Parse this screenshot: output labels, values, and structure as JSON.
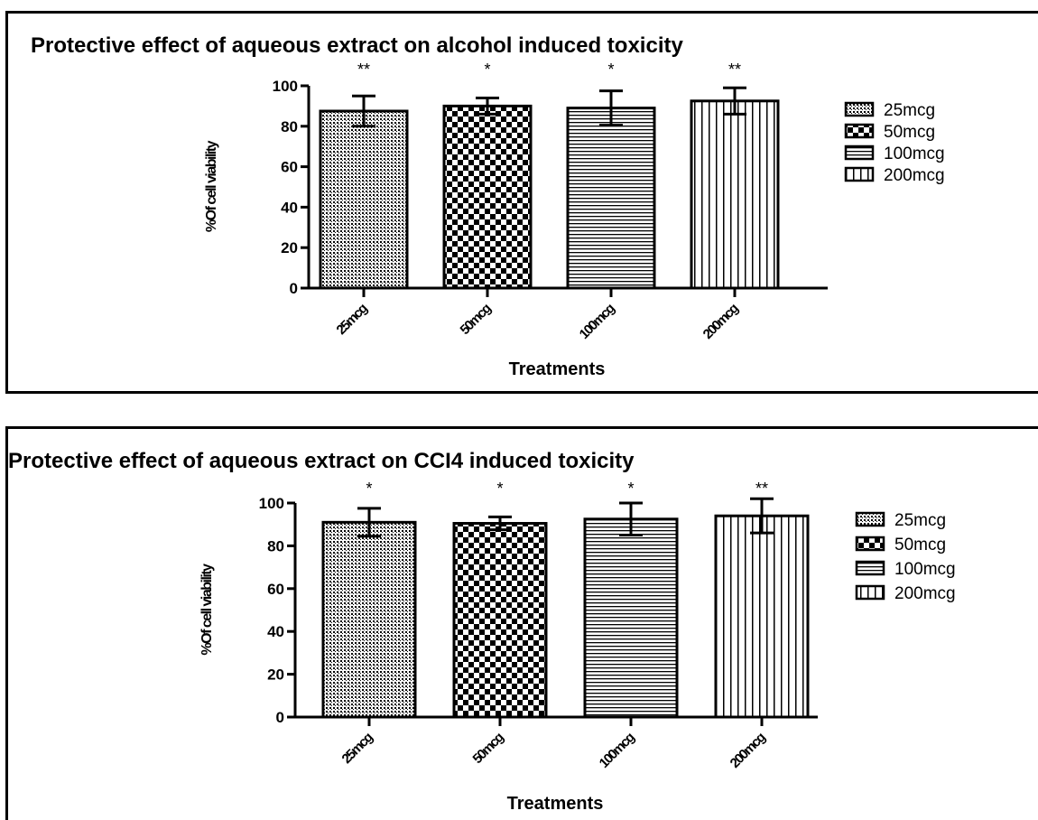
{
  "chart_data": [
    {
      "type": "bar",
      "title": "Protective effect of aqueous extract on alcohol  induced toxicity",
      "xlabel": "Treatments",
      "ylabel": "%Of cell viability",
      "ylim": [
        0,
        100
      ],
      "yticks": [
        "0",
        "20",
        "40",
        "60",
        "80",
        "100"
      ],
      "categories": [
        "25mcg",
        "50mcg",
        "100mcg",
        "200mcg"
      ],
      "values": [
        87.5,
        90,
        89,
        92.5
      ],
      "errors": [
        7.5,
        4,
        8.5,
        6.5
      ],
      "significance": [
        "**",
        "*",
        "*",
        "**"
      ],
      "legend": [
        "25mcg",
        "50mcg",
        "100mcg",
        "200mcg"
      ],
      "legend_position": "right",
      "grid": false
    },
    {
      "type": "bar",
      "title": "Protective effect of aqueous extract on CCI4  induced toxicity",
      "xlabel": "Treatments",
      "ylabel": "%Of cell viability",
      "ylim": [
        0,
        100
      ],
      "yticks": [
        "0",
        "20",
        "40",
        "60",
        "80",
        "100"
      ],
      "categories": [
        "25mcg",
        "50mcg",
        "100mcg",
        "200mcg"
      ],
      "values": [
        91,
        90.5,
        92.5,
        94
      ],
      "errors": [
        6.5,
        3,
        7.5,
        8
      ],
      "significance": [
        "*",
        "*",
        "*",
        "**"
      ],
      "legend": [
        "25mcg",
        "50mcg",
        "100mcg",
        "200mcg"
      ],
      "legend_position": "right",
      "grid": false
    }
  ]
}
